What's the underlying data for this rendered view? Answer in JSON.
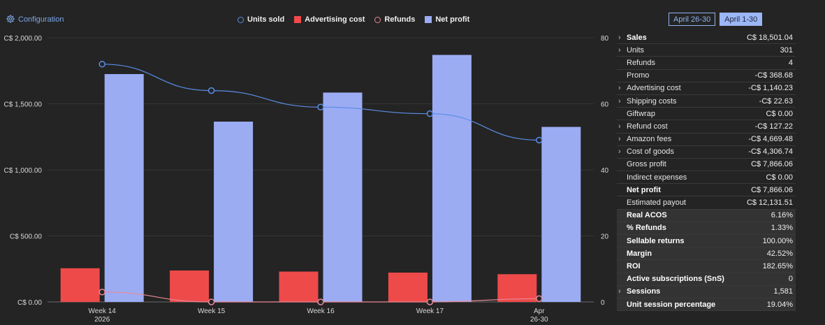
{
  "header": {
    "config_label": "Configuration",
    "periods": [
      "April 26-30",
      "April 1-30"
    ]
  },
  "legend": [
    {
      "label": "Units sold",
      "kind": "circle",
      "color": "#5b8ee8"
    },
    {
      "label": "Advertising cost",
      "kind": "box",
      "color": "#ee4a4a"
    },
    {
      "label": "Refunds",
      "kind": "circle",
      "color": "#e88a98"
    },
    {
      "label": "Net profit",
      "kind": "box",
      "color": "#9cacf3"
    }
  ],
  "chart_data": {
    "type": "bar",
    "categories": [
      [
        "Week 14",
        "2026"
      ],
      [
        "Week 15",
        ""
      ],
      [
        "Week 16",
        ""
      ],
      [
        "Week 17",
        ""
      ],
      [
        "Apr",
        "26-30"
      ]
    ],
    "y_left": {
      "ticks": [
        "C$ 0.00",
        "C$ 500.00",
        "C$ 1,000.00",
        "C$ 1,500.00",
        "C$ 2,000.00"
      ],
      "range": [
        0,
        2000
      ]
    },
    "y_right": {
      "ticks": [
        "0",
        "20",
        "40",
        "60",
        "80"
      ],
      "range": [
        0,
        80
      ]
    },
    "series": [
      {
        "name": "Advertising cost",
        "type": "bar",
        "axis": "left",
        "color": "#ee4a4a",
        "values": [
          255,
          238,
          230,
          222,
          210
        ]
      },
      {
        "name": "Net profit",
        "type": "bar",
        "axis": "left",
        "color": "#9cacf3",
        "values": [
          1725,
          1365,
          1585,
          1870,
          1325
        ]
      },
      {
        "name": "Units sold",
        "type": "line",
        "axis": "right",
        "color": "#5b8ee8",
        "values": [
          72,
          64,
          59,
          57,
          49
        ]
      },
      {
        "name": "Refunds",
        "type": "line",
        "axis": "right",
        "color": "#e88a98",
        "values": [
          3,
          0,
          0,
          0,
          1
        ]
      }
    ],
    "grid": true
  },
  "summary": [
    {
      "label": "Sales",
      "value": "C$ 18,501.04",
      "expand": true,
      "bold": true,
      "shaded": false
    },
    {
      "label": "Units",
      "value": "301",
      "expand": true,
      "bold": false,
      "shaded": false
    },
    {
      "label": "Refunds",
      "value": "4",
      "expand": false,
      "bold": false,
      "shaded": false
    },
    {
      "label": "Promo",
      "value": "-C$ 368.68",
      "expand": false,
      "bold": false,
      "shaded": false
    },
    {
      "label": "Advertising cost",
      "value": "-C$ 1,140.23",
      "expand": true,
      "bold": false,
      "shaded": false
    },
    {
      "label": "Shipping costs",
      "value": "-C$ 22.63",
      "expand": true,
      "bold": false,
      "shaded": false
    },
    {
      "label": "Giftwrap",
      "value": "C$ 0.00",
      "expand": false,
      "bold": false,
      "shaded": false
    },
    {
      "label": "Refund cost",
      "value": "-C$ 127.22",
      "expand": true,
      "bold": false,
      "shaded": false
    },
    {
      "label": "Amazon fees",
      "value": "-C$ 4,669.48",
      "expand": true,
      "bold": false,
      "shaded": false
    },
    {
      "label": "Cost of goods",
      "value": "-C$ 4,306.74",
      "expand": true,
      "bold": false,
      "shaded": false
    },
    {
      "label": "Gross profit",
      "value": "C$ 7,866.06",
      "expand": false,
      "bold": false,
      "shaded": false
    },
    {
      "label": "Indirect expenses",
      "value": "C$ 0.00",
      "expand": false,
      "bold": false,
      "shaded": false
    },
    {
      "label": "Net profit",
      "value": "C$ 7,866.06",
      "expand": false,
      "bold": true,
      "shaded": false
    },
    {
      "label": "Estimated payout",
      "value": "C$ 12,131.51",
      "expand": false,
      "bold": false,
      "shaded": false
    },
    {
      "label": "Real ACOS",
      "value": "6.16%",
      "expand": false,
      "bold": true,
      "shaded": true
    },
    {
      "label": "% Refunds",
      "value": "1.33%",
      "expand": false,
      "bold": true,
      "shaded": true
    },
    {
      "label": "Sellable returns",
      "value": "100.00%",
      "expand": false,
      "bold": true,
      "shaded": true
    },
    {
      "label": "Margin",
      "value": "42.52%",
      "expand": false,
      "bold": true,
      "shaded": true
    },
    {
      "label": "ROI",
      "value": "182.65%",
      "expand": false,
      "bold": true,
      "shaded": true
    },
    {
      "label": "Active subscriptions (SnS)",
      "value": "0",
      "expand": false,
      "bold": true,
      "shaded": true
    },
    {
      "label": "Sessions",
      "value": "1,581",
      "expand": true,
      "bold": true,
      "shaded": true
    },
    {
      "label": "Unit session percentage",
      "value": "19.04%",
      "expand": false,
      "bold": true,
      "shaded": true
    }
  ]
}
